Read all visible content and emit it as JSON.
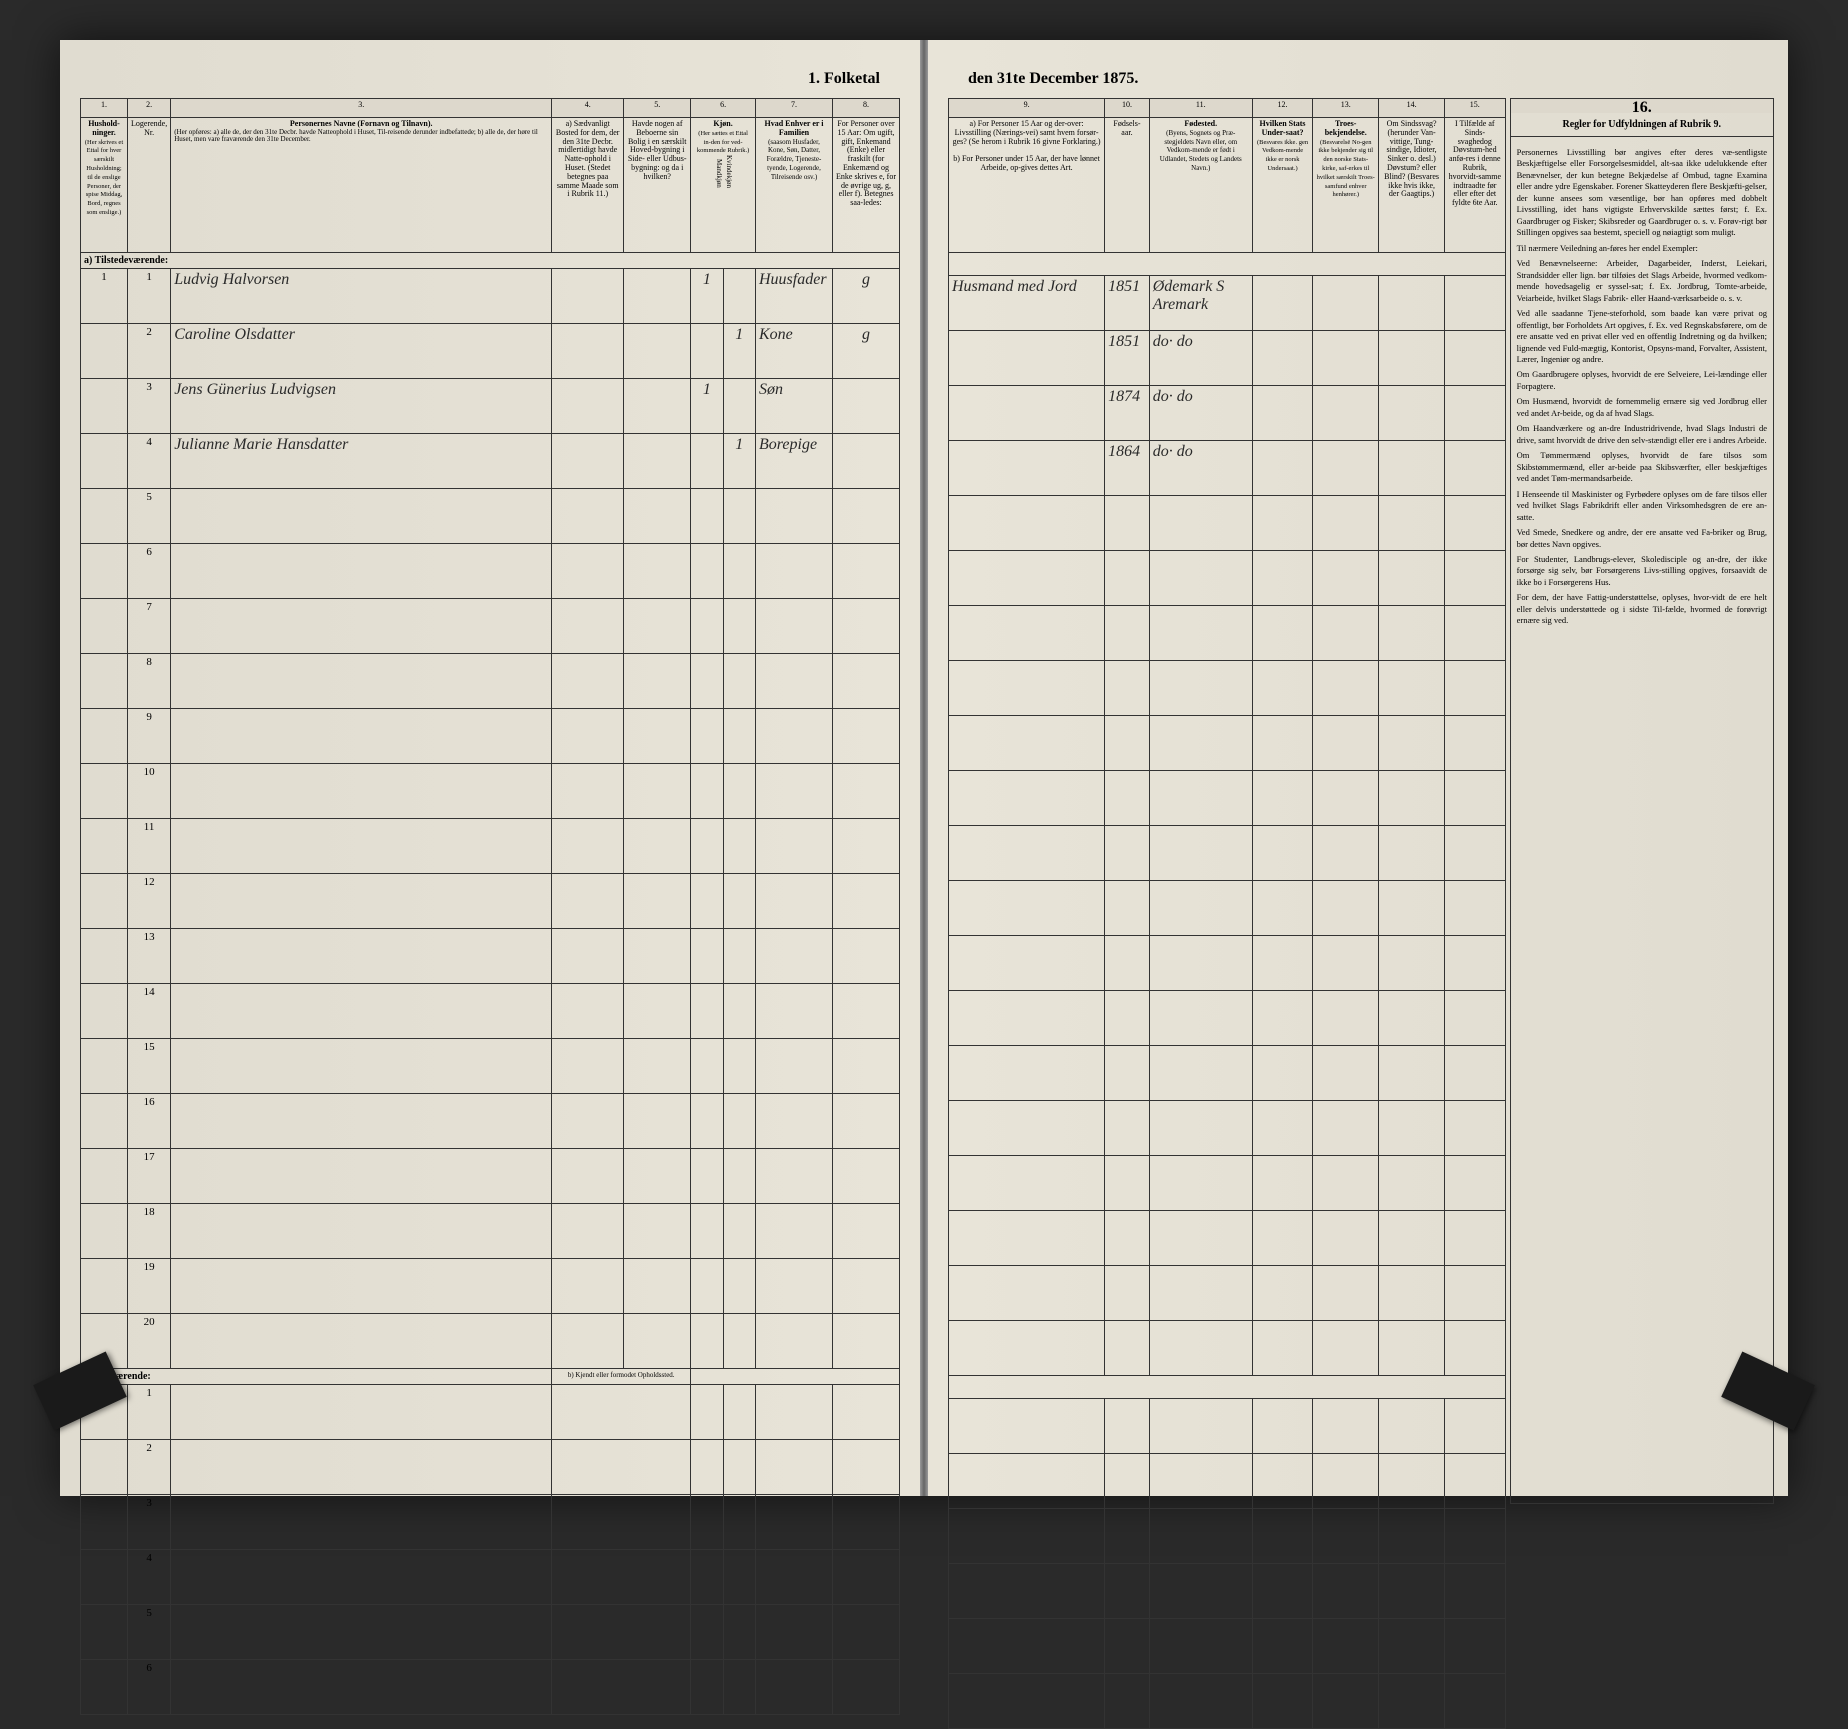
{
  "title_left": "1. Folketal",
  "title_right": "den 31te December 1875.",
  "column_numbers": [
    "1.",
    "2.",
    "3.",
    "4.",
    "5.",
    "6.",
    "7.",
    "8.",
    "9.",
    "10.",
    "11.",
    "12.",
    "13.",
    "14.",
    "15.",
    "16."
  ],
  "headers_left": {
    "col1": "Hushold-ninger.",
    "col1_sub": "(Her skrives et Ettal for hver særskilt Husholdning; til de enslige Personer, der spise Middag, Bord, regnes som enslige.)",
    "col2": "Logerende, Nr.",
    "col3": "Personernes Navne (Fornavn og Tilnavn).",
    "col3_sub": "(Her opføres: a) alle de, der den 31te Decbr. havde Natteophold i Huset, Til-reisende derunder indbefattede; b) alle de, der høre til Huset, men vare fraværende den 31te December.",
    "col4": "a) Sædvanligt Bosted for dem, der den 31te Decbr. midlertidigt havde Natte-ophold i Huset. (Stedet betegnes paa samme Maade som i Rubrik 11.)",
    "col5": "Havde nogen af Beboerne sin Bolig i en særskilt Hoved-bygning i Side- eller Udbus-bygning: og da i hvilken?",
    "col6": "Kjøn.",
    "col6_sub": "(Her sættes et Ettal in-den for ved-kommende Rubrik.)",
    "col6a": "Mandkjøn",
    "col6b": "Kvindekjøn",
    "col7": "Hvad Enhver er i Familien",
    "col7_sub": "(saasom Husfader, Kone, Søn, Datter, Forældre, Tjeneste-tyende, Logerende, Tilreisende osv.)",
    "col8": "For Personer over 15 Aar: Om ugift, gift, Enkemand (Enke) eller fraskilt (for Enkemænd og Enke skrives e, for de øvrige ug, g, eller f). Betegnes saa-ledes:"
  },
  "headers_right": {
    "col9a": "a) For Personer 15 Aar og der-over: Livsstilling (Nærings-vei) samt hvem forsør-ges? (Se herom i Rubrik 16 givne Forklaring.)",
    "col9b": "b) For Personer under 15 Aar, der have lønnet Arbeide, op-gives dettes Art.",
    "col10": "Fødsels-aar.",
    "col11": "Fødested.",
    "col11_sub": "(Byens, Sognets og Præ-stegjeldets Navn eller, om Vedkom-mende er født i Udlandet, Stedets og Landets Navn.)",
    "col12": "Hvilken Stats Under-saat?",
    "col12_sub": "(Besvares ikke. gen Vedkom-mende ikke er norsk Undersaat.)",
    "col13": "Troes-bekjendelse.",
    "col13_sub": "(Besvarelsë No-gen ikke bekjender sig til den norske Stats-kirke, saf-erkes til hvilket særskilt Troes-samfund enhver henhører.)",
    "col14": "Om Sindssvag? (herunder Van-vittige, Tung-sindige, Idioter, Sinker o. desl.) Døvstum? eller Blind? (Besvares ikke hvis ikke, der Gaagtips.)",
    "col15": "I Tilfælde af Sinds-svaghedog Døvstum-hed anfø-res i denne Rubrik, hvorvidt-samme indtraadte før eller efter det fyldte 6te Aar.",
    "col16": "Regler for Udfyldningen af Rubrik 9."
  },
  "section_a": "a) Tilstedeværende:",
  "section_b": "b) Fraværende:",
  "section_b_col4": "b) Kjendt eller formodet Opholdssted.",
  "rows": [
    {
      "num": "1",
      "hh": "1",
      "name": "Ludvig Halvorsen",
      "mk": "1",
      "kk": "",
      "family": "Huusfader",
      "status": "g",
      "occupation": "Husmand med Jord",
      "year": "1851",
      "place": "Ødemark S Aremark"
    },
    {
      "num": "2",
      "hh": "",
      "name": "Caroline Olsdatter",
      "mk": "",
      "kk": "1",
      "family": "Kone",
      "status": "g",
      "occupation": "",
      "year": "1851",
      "place": "do· do"
    },
    {
      "num": "3",
      "hh": "",
      "name": "Jens Günerius Ludvigsen",
      "mk": "1",
      "kk": "",
      "family": "Søn",
      "status": "",
      "occupation": "",
      "year": "1874",
      "place": "do· do"
    },
    {
      "num": "4",
      "hh": "",
      "name": "Julianne Marie Hansdatter",
      "mk": "",
      "kk": "1",
      "family": "Borepige",
      "status": "",
      "occupation": "",
      "year": "1864",
      "place": "do· do"
    }
  ],
  "empty_rows_a": [
    "5",
    "6",
    "7",
    "8",
    "9",
    "10",
    "11",
    "12",
    "13",
    "14",
    "15",
    "16",
    "17",
    "18",
    "19",
    "20"
  ],
  "empty_rows_b": [
    "1",
    "2",
    "3",
    "4",
    "5",
    "6"
  ],
  "instructions_title": "Regler for Udfyldningen af Rubrik 9.",
  "instructions_paragraphs": [
    "Personernes Livsstilling bør angives efter deres væ-sentligste Beskjæftigelse eller Forsorgelsesmiddel, alt-saa ikke udelukkende efter Benævnelser, der kun betegne Bekjædelse af Ombud, tagne Examina eller andre ydre Egenskaber. Forener Skatteyderen flere Beskjæfti-gelser, der kunne ansees som væsentlige, bør han opføres med dobbelt Livsstilling, idet hans vigtigste Erhvervskilde sættes først; f. Ex. Gaardbruger og Fisker; Skibsreder og Gaardbruger o. s. v. Forøv-rigt bør Stillingen opgives saa bestemt, speciell og nøiagtigt som muligt.",
    "Til nærmere Veiledning an-føres her endel Exempler:",
    "Ved Benævnelseerne: Arbeider, Dagarbeider, Inderst, Leiekari, Strandsidder eller lign. bør tilføies det Slags Arbeide, hvormed vedkom-mende hovedsagelig er syssel-sat; f. Ex. Jordbrug, Tomte-arbeide, Veiarbeide, hvilket Slags Fabrik- eller Haand-værksarbeide o. s. v.",
    "Ved alle saadanne Tjene-steforhold, som baade kan være privat og offentligt, bør Forholdets Art opgives, f. Ex. ved Regnskabsførere, om de ere ansatte ved en privat eller ved en offentlig Indretning og da hvilken; lignende ved Fuld-mægtig, Kontorist, Opsyns-mand, Forvalter, Assistent, Lærer, Ingeniør og andre.",
    "Om Gaardbrugere oplyses, hvorvidt de ere Selveiere, Lei-lændinge eller Forpagtere.",
    "Om Husmænd, hvorvidt de fornemmelig ernære sig ved Jordbrug eller ved andet Ar-beide, og da af hvad Slags.",
    "Om Haandværkere og an-dre Industridrivende, hvad Slags Industri de drive, samt hvorvidt de drive den selv-stændigt eller ere i andres Arbeide.",
    "Om Tømmermænd oplyses, hvorvidt de fare tilsos som Skibstømmermænd, eller ar-beide paa Skibsværfter, eller beskjæftiges ved andet Tøm-mermandsarbeide.",
    "I Henseende til Maskinister og Fyrbødere oplyses om de fare tilsos eller ved hvilket Slags Fabrikdrift eller anden Virksomhedsgren de ere an-satte.",
    "Ved Smede, Snedkere og andre, der ere ansatte ved Fa-briker og Brug, bør dettes Navn opgives.",
    "For Studenter, Landbrugs-elever, Skoledisciple og an-dre, der ikke forsørge sig selv, bør Forsørgerens Livs-stilling opgives, forsaavidt de ikke bo i Forsørgerens Hus.",
    "For dem, der have Fattig-understøttelse, oplyses, hvor-vidt de ere helt eller delvis understøttede og i sidste Til-fælde, hvormed de forøvrigt ernære sig ved."
  ]
}
